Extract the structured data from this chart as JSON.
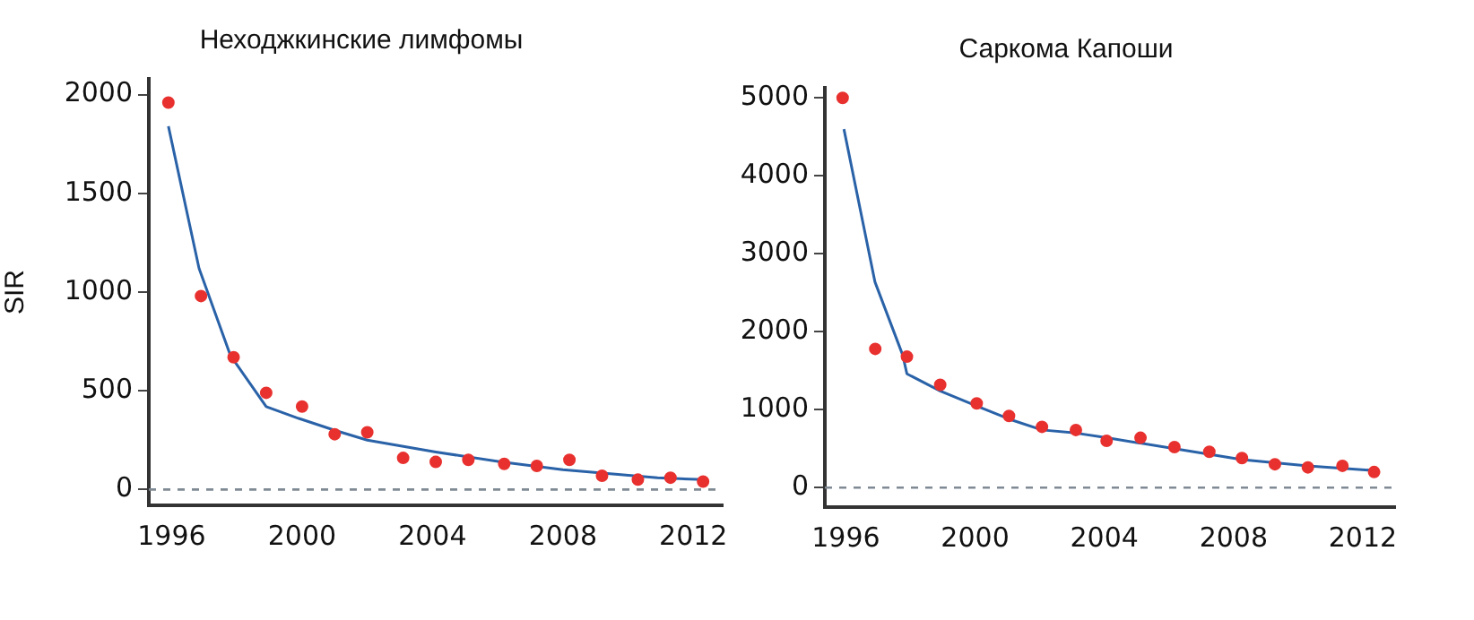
{
  "chart_data": [
    {
      "type": "scatter",
      "title": "Неходжкинские лимфомы",
      "ylabel": "SIR",
      "xlim": [
        1995.3,
        2012.9
      ],
      "xticks": [
        1996,
        2000,
        2004,
        2008,
        2012
      ],
      "ylim": [
        -80,
        2080
      ],
      "yticks": [
        0,
        500,
        1000,
        1500,
        2000
      ],
      "ref_lines": [
        {
          "axis": "y",
          "value": 0,
          "label": null,
          "color": "#7f8a94",
          "line_style": "dashed"
        }
      ],
      "series": [
        {
          "color": "#e8312f",
          "marker": "circle",
          "x": [
            1995.9,
            1996.9,
            1997.9,
            1998.9,
            2000.0,
            2001.0,
            2002.0,
            2003.1,
            2004.1,
            2005.1,
            2006.2,
            2007.2,
            2008.2,
            2009.2,
            2010.3,
            2011.3,
            2012.3
          ],
          "values": [
            1960,
            980,
            670,
            490,
            420,
            280,
            290,
            160,
            140,
            150,
            130,
            120,
            150,
            70,
            50,
            60,
            40
          ]
        },
        {
          "type": "line",
          "color": "#2a62a8",
          "marker": "none",
          "x": [
            1995.9,
            1996.84,
            1997.8,
            1998.9,
            1999.9,
            2001.0,
            2002.0,
            2004.1,
            2006.1,
            2008.0,
            2010.9,
            2012.3
          ],
          "values": [
            1840,
            1120,
            680,
            420,
            360,
            300,
            250,
            190,
            140,
            100,
            60,
            50
          ]
        }
      ]
    },
    {
      "type": "scatter",
      "title": "Саркома Капоши",
      "xlim": [
        1995.35,
        2013.0
      ],
      "xticks": [
        1996,
        2000,
        2004,
        2008,
        2012
      ],
      "ylim": [
        -250,
        5130
      ],
      "yticks": [
        0,
        1000,
        2000,
        3000,
        4000,
        5000
      ],
      "ref_lines": [
        {
          "axis": "y",
          "value": 0,
          "label": null,
          "color": "#7f8a94",
          "line_style": "dashed"
        }
      ],
      "series": [
        {
          "color": "#e8312f",
          "marker": "circle",
          "x": [
            1995.9,
            1996.91,
            1997.89,
            1998.92,
            2000.05,
            2001.05,
            2002.07,
            2003.12,
            2004.07,
            2005.12,
            2006.17,
            2007.25,
            2008.26,
            2009.28,
            2010.3,
            2011.37,
            2012.35
          ],
          "values": [
            5000,
            1780,
            1680,
            1320,
            1080,
            920,
            780,
            740,
            600,
            640,
            520,
            460,
            380,
            300,
            260,
            280,
            200
          ]
        },
        {
          "type": "line",
          "color": "#2a62a8",
          "marker": "none",
          "x": [
            1995.94,
            1996.9,
            1997.76,
            1997.89,
            1998.92,
            1999.98,
            2001.05,
            2002.07,
            2003.12,
            2004.07,
            2006.17,
            2008.26,
            2010.3,
            2012.35
          ],
          "values": [
            4600,
            2640,
            1700,
            1460,
            1240,
            1060,
            880,
            740,
            700,
            640,
            500,
            360,
            280,
            220
          ]
        }
      ]
    }
  ]
}
